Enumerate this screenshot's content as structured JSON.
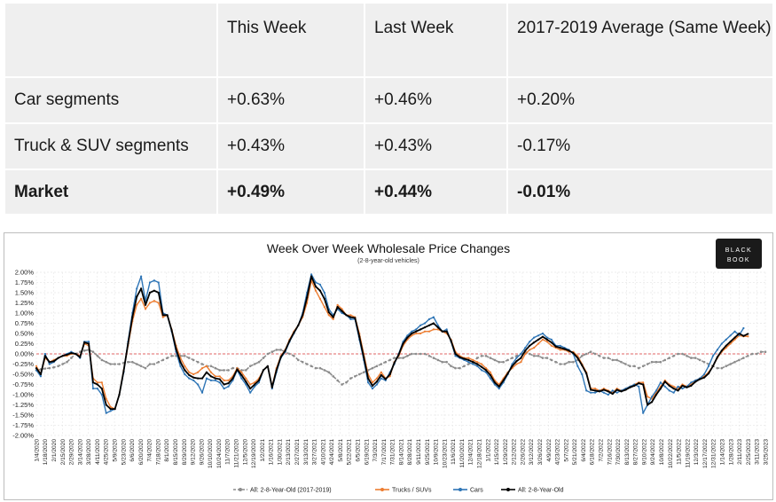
{
  "table": {
    "header": [
      "",
      "This Week",
      "Last Week",
      "2017-2019 Average (Same Week)"
    ],
    "rows": [
      [
        "Car segments",
        "+0.63%",
        "+0.46%",
        "+0.20%"
      ],
      [
        "Truck & SUV segments",
        "+0.43%",
        "+0.43%",
        "-0.17%"
      ],
      [
        "Market",
        "+0.49%",
        "+0.44%",
        "-0.01%"
      ]
    ]
  },
  "logo": {
    "line1": "BLACK",
    "line2": "BOOK"
  },
  "chart_data": {
    "type": "line",
    "title": "Week Over Week Wholesale Price Changes",
    "subtitle": "(2-8-year-old vehicles)",
    "ylim": [
      -2.0,
      2.0
    ],
    "yticks": [
      "2.00%",
      "1.75%",
      "1.50%",
      "1.25%",
      "1.00%",
      "0.75%",
      "0.50%",
      "0.25%",
      "0.00%",
      "-0.25%",
      "-0.50%",
      "-0.75%",
      "-1.00%",
      "-1.25%",
      "-1.50%",
      "-1.75%",
      "-2.00%"
    ],
    "xticks": [
      "1/4/2020",
      "1/18/2020",
      "2/1/2020",
      "2/15/2020",
      "2/29/2020",
      "3/14/2020",
      "3/28/2020",
      "4/11/2020",
      "4/25/2020",
      "5/9/2020",
      "5/23/2020",
      "6/6/2020",
      "6/20/2020",
      "7/4/2020",
      "7/18/2020",
      "8/1/2020",
      "8/15/2020",
      "8/29/2020",
      "9/12/2020",
      "9/26/2020",
      "10/10/2020",
      "10/24/2020",
      "11/7/2020",
      "11/21/2020",
      "12/5/2020",
      "12/19/2020",
      "1/2/2021",
      "1/16/2021",
      "1/30/2021",
      "2/13/2021",
      "2/27/2021",
      "3/13/2021",
      "3/27/2021",
      "4/10/2021",
      "4/24/2021",
      "5/8/2021",
      "5/22/2021",
      "6/5/2021",
      "6/19/2021",
      "7/3/2021",
      "7/17/2021",
      "7/31/2021",
      "8/14/2021",
      "8/28/2021",
      "9/11/2021",
      "9/25/2021",
      "10/9/2021",
      "10/23/2021",
      "11/6/2021",
      "11/20/2021",
      "12/4/2021",
      "12/18/2021",
      "1/1/2022",
      "1/15/2022",
      "1/29/2022",
      "2/12/2022",
      "2/26/2022",
      "3/12/2022",
      "3/26/2022",
      "4/9/2022",
      "4/23/2022",
      "5/7/2022",
      "5/21/2022",
      "6/4/2022",
      "6/18/2022",
      "7/2/2022",
      "7/16/2022",
      "7/30/2022",
      "8/13/2022",
      "8/27/2022",
      "9/10/2022",
      "9/24/2022",
      "10/8/2022",
      "10/22/2022",
      "11/5/2022",
      "11/19/2022",
      "12/3/2022",
      "12/17/2022",
      "12/31/2022",
      "1/14/2023",
      "1/28/2023",
      "2/11/2023",
      "2/25/2023",
      "3/11/2023",
      "3/25/2023"
    ],
    "reference_line": 0.0,
    "grid": true,
    "legend_position": "bottom",
    "series": [
      {
        "name": "All: 2-8-Year-Old (2017-2019)",
        "color": "#8c8c8c",
        "style": "dashed-markers",
        "values": [
          -0.4,
          -0.38,
          -0.36,
          -0.35,
          -0.33,
          -0.3,
          -0.25,
          -0.2,
          -0.1,
          0.0,
          0.05,
          0.08,
          0.1,
          0.05,
          -0.05,
          -0.15,
          -0.2,
          -0.25,
          -0.25,
          -0.25,
          -0.22,
          -0.2,
          -0.2,
          -0.25,
          -0.3,
          -0.35,
          -0.25,
          -0.25,
          -0.2,
          -0.15,
          -0.1,
          -0.05,
          -0.05,
          -0.05,
          -0.05,
          -0.1,
          -0.15,
          -0.2,
          -0.25,
          -0.3,
          -0.3,
          -0.35,
          -0.4,
          -0.4,
          -0.4,
          -0.35,
          -0.35,
          -0.4,
          -0.4,
          -0.3,
          -0.25,
          -0.2,
          -0.1,
          0.0,
          0.05,
          0.1,
          0.1,
          0.05,
          0.0,
          -0.05,
          -0.15,
          -0.2,
          -0.25,
          -0.3,
          -0.35,
          -0.35,
          -0.4,
          -0.45,
          -0.55,
          -0.65,
          -0.75,
          -0.7,
          -0.6,
          -0.55,
          -0.5,
          -0.45,
          -0.4,
          -0.35,
          -0.3,
          -0.25,
          -0.2,
          -0.15,
          -0.1,
          -0.1,
          -0.1,
          -0.05,
          0.0,
          0.0,
          0.0,
          0.0,
          -0.05,
          -0.1,
          -0.15,
          -0.2,
          -0.2,
          -0.3,
          -0.35,
          -0.35,
          -0.3,
          -0.25,
          -0.2,
          -0.1,
          -0.05,
          -0.05,
          -0.1,
          -0.15,
          -0.2,
          -0.2,
          -0.15,
          -0.1,
          -0.05,
          0.0,
          0.05,
          0.0,
          -0.05,
          -0.05,
          -0.1,
          -0.1,
          -0.15,
          -0.2,
          -0.25,
          -0.25,
          -0.2,
          -0.2,
          -0.15,
          -0.05,
          0.0,
          0.05,
          0.0,
          -0.05,
          -0.1,
          -0.1,
          -0.15,
          -0.15,
          -0.2,
          -0.25,
          -0.3,
          -0.3,
          -0.35,
          -0.3,
          -0.25,
          -0.2,
          -0.2,
          -0.2,
          -0.15,
          -0.1,
          -0.05,
          0.0,
          0.0,
          -0.05,
          -0.1,
          -0.1,
          -0.15,
          -0.2,
          -0.25,
          -0.3,
          -0.35,
          -0.35,
          -0.3,
          -0.25,
          -0.2,
          -0.15,
          -0.1,
          -0.05,
          0.0,
          0.0,
          0.05,
          0.05
        ]
      },
      {
        "name": "Trucks / SUVs",
        "color": "#ed7d31",
        "style": "markers",
        "values": [
          -0.3,
          -0.5,
          -0.1,
          -0.2,
          -0.15,
          -0.1,
          -0.05,
          -0.05,
          0.0,
          0.0,
          -0.05,
          0.25,
          0.2,
          -0.6,
          -0.7,
          -0.7,
          -1.1,
          -1.3,
          -1.35,
          -1.0,
          -0.4,
          0.2,
          0.8,
          1.2,
          1.35,
          1.1,
          1.25,
          1.3,
          1.25,
          0.9,
          0.95,
          0.6,
          0.2,
          -0.1,
          -0.3,
          -0.45,
          -0.5,
          -0.45,
          -0.35,
          -0.3,
          -0.45,
          -0.55,
          -0.55,
          -0.65,
          -0.65,
          -0.55,
          -0.35,
          -0.45,
          -0.6,
          -0.75,
          -0.7,
          -0.6,
          -0.4,
          -0.3,
          -0.8,
          -0.35,
          -0.05,
          0.1,
          0.35,
          0.55,
          0.7,
          0.9,
          1.25,
          1.8,
          1.55,
          1.35,
          1.15,
          0.95,
          0.85,
          1.2,
          1.1,
          0.95,
          0.95,
          0.9,
          0.5,
          0.0,
          -0.5,
          -0.7,
          -0.6,
          -0.45,
          -0.6,
          -0.55,
          -0.2,
          -0.05,
          0.2,
          0.35,
          0.45,
          0.5,
          0.5,
          0.55,
          0.55,
          0.6,
          0.6,
          0.55,
          0.5,
          0.35,
          0.05,
          -0.05,
          -0.1,
          -0.1,
          -0.15,
          -0.2,
          -0.25,
          -0.35,
          -0.45,
          -0.65,
          -0.75,
          -0.6,
          -0.45,
          -0.35,
          -0.25,
          -0.2,
          0.0,
          0.1,
          0.15,
          0.25,
          0.35,
          0.3,
          0.2,
          0.15,
          0.1,
          0.1,
          0.05,
          0.05,
          -0.05,
          -0.25,
          -0.45,
          -0.85,
          -0.85,
          -0.9,
          -0.85,
          -0.9,
          -0.95,
          -0.85,
          -0.9,
          -0.85,
          -0.8,
          -0.75,
          -0.7,
          -0.7,
          -1.05,
          -1.1,
          -0.95,
          -0.8,
          -0.65,
          -0.75,
          -0.8,
          -0.85,
          -0.75,
          -0.8,
          -0.75,
          -0.65,
          -0.6,
          -0.55,
          -0.45,
          -0.3,
          -0.1,
          0.05,
          0.15,
          0.25,
          0.35,
          0.45,
          0.43,
          0.43
        ]
      },
      {
        "name": "Cars",
        "color": "#2e75b6",
        "style": "markers",
        "values": [
          -0.4,
          -0.55,
          0.0,
          -0.25,
          -0.2,
          -0.1,
          -0.05,
          0.0,
          0.05,
          0.0,
          -0.1,
          0.3,
          0.3,
          -0.85,
          -0.85,
          -1.0,
          -1.45,
          -1.4,
          -1.35,
          -1.0,
          -0.45,
          0.3,
          1.0,
          1.6,
          1.9,
          1.3,
          1.75,
          1.8,
          1.75,
          1.0,
          0.95,
          0.55,
          0.05,
          -0.3,
          -0.5,
          -0.6,
          -0.65,
          -0.75,
          -0.95,
          -0.6,
          -0.65,
          -0.65,
          -0.7,
          -0.85,
          -0.8,
          -0.65,
          -0.4,
          -0.6,
          -0.75,
          -0.95,
          -0.8,
          -0.7,
          -0.4,
          -0.3,
          -0.85,
          -0.45,
          -0.1,
          0.05,
          0.3,
          0.5,
          0.7,
          1.0,
          1.5,
          1.95,
          1.75,
          1.7,
          1.5,
          1.1,
          0.95,
          1.1,
          1.0,
          0.95,
          0.85,
          0.85,
          0.35,
          -0.15,
          -0.7,
          -0.85,
          -0.75,
          -0.6,
          -0.65,
          -0.45,
          -0.25,
          0.0,
          0.3,
          0.45,
          0.55,
          0.6,
          0.7,
          0.75,
          0.85,
          0.9,
          0.7,
          0.55,
          0.6,
          0.3,
          -0.05,
          -0.1,
          -0.15,
          -0.2,
          -0.25,
          -0.3,
          -0.4,
          -0.45,
          -0.6,
          -0.75,
          -0.85,
          -0.7,
          -0.5,
          -0.25,
          -0.1,
          0.0,
          0.15,
          0.3,
          0.4,
          0.45,
          0.5,
          0.4,
          0.35,
          0.2,
          0.2,
          0.15,
          0.1,
          0.0,
          -0.3,
          -0.5,
          -0.9,
          -0.95,
          -0.95,
          -0.9,
          -0.95,
          -1.0,
          -0.9,
          -0.95,
          -0.9,
          -0.85,
          -0.8,
          -0.75,
          -0.8,
          -1.45,
          -1.25,
          -1.05,
          -0.9,
          -0.7,
          -0.8,
          -0.9,
          -0.95,
          -0.8,
          -0.85,
          -0.8,
          -0.7,
          -0.65,
          -0.6,
          -0.5,
          -0.3,
          -0.05,
          0.1,
          0.25,
          0.35,
          0.45,
          0.55,
          0.46,
          0.63
        ]
      },
      {
        "name": "All: 2-8-Year-Old",
        "color": "#000000",
        "style": "markers",
        "values": [
          -0.35,
          -0.5,
          -0.05,
          -0.2,
          -0.18,
          -0.1,
          -0.05,
          -0.02,
          0.02,
          0.0,
          -0.08,
          0.28,
          0.25,
          -0.7,
          -0.75,
          -0.85,
          -1.25,
          -1.35,
          -1.35,
          -1.0,
          -0.42,
          0.25,
          0.9,
          1.4,
          1.6,
          1.2,
          1.5,
          1.55,
          1.5,
          0.95,
          0.95,
          0.58,
          0.12,
          -0.2,
          -0.4,
          -0.52,
          -0.58,
          -0.6,
          -0.6,
          -0.45,
          -0.55,
          -0.6,
          -0.62,
          -0.75,
          -0.72,
          -0.6,
          -0.38,
          -0.52,
          -0.68,
          -0.85,
          -0.75,
          -0.65,
          -0.4,
          -0.3,
          -0.82,
          -0.4,
          -0.08,
          0.08,
          0.32,
          0.52,
          0.7,
          0.95,
          1.38,
          1.9,
          1.65,
          1.55,
          1.35,
          1.02,
          0.9,
          1.15,
          1.05,
          0.95,
          0.9,
          0.88,
          0.42,
          -0.08,
          -0.6,
          -0.78,
          -0.68,
          -0.52,
          -0.62,
          -0.5,
          -0.22,
          -0.02,
          0.25,
          0.4,
          0.5,
          0.55,
          0.6,
          0.65,
          0.7,
          0.75,
          0.65,
          0.55,
          0.55,
          0.32,
          0.0,
          -0.08,
          -0.12,
          -0.15,
          -0.2,
          -0.25,
          -0.32,
          -0.4,
          -0.52,
          -0.7,
          -0.8,
          -0.65,
          -0.48,
          -0.3,
          -0.18,
          -0.1,
          0.08,
          0.2,
          0.28,
          0.35,
          0.42,
          0.35,
          0.28,
          0.18,
          0.15,
          0.12,
          0.08,
          0.02,
          -0.1,
          -0.28,
          -0.48,
          -0.88,
          -0.9,
          -0.92,
          -0.88,
          -0.92,
          -0.98,
          -0.88,
          -0.92,
          -0.88,
          -0.82,
          -0.78,
          -0.72,
          -0.75,
          -1.25,
          -1.18,
          -1.0,
          -0.85,
          -0.68,
          -0.78,
          -0.85,
          -0.9,
          -0.78,
          -0.82,
          -0.78,
          -0.68,
          -0.62,
          -0.58,
          -0.48,
          -0.3,
          -0.08,
          0.08,
          0.2,
          0.3,
          0.4,
          0.5,
          0.44,
          0.49
        ]
      }
    ]
  }
}
